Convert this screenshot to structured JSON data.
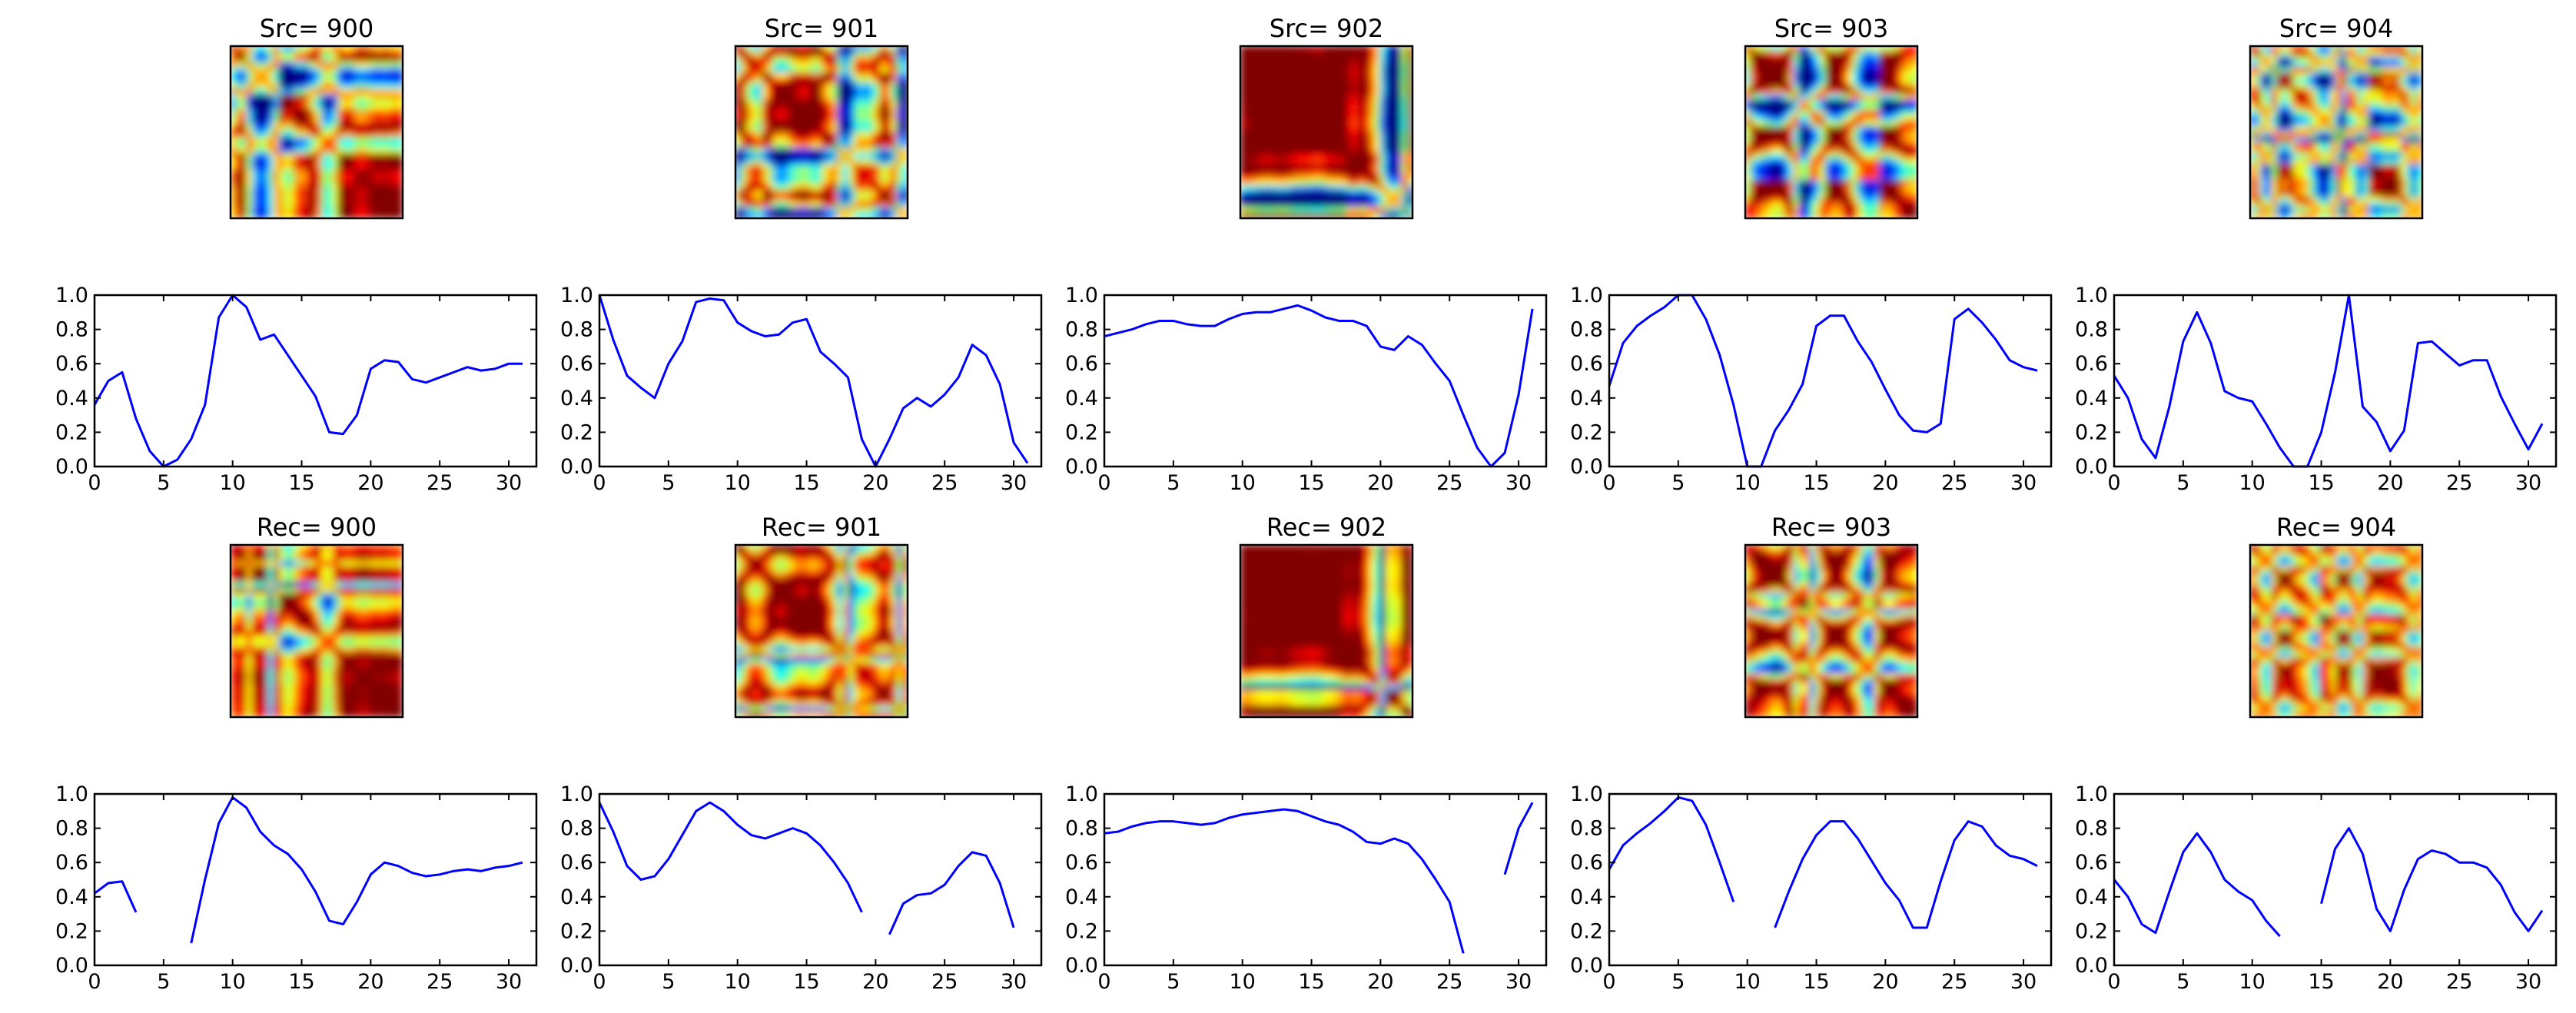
{
  "figure": {
    "description_free": true
  },
  "chart_data": [
    {
      "type": "heatmap",
      "title": "Src= 900",
      "sample": 900,
      "kind": "source"
    },
    {
      "type": "heatmap",
      "title": "Src= 901",
      "sample": 901,
      "kind": "source"
    },
    {
      "type": "heatmap",
      "title": "Src= 902",
      "sample": 902,
      "kind": "source"
    },
    {
      "type": "heatmap",
      "title": "Src= 903",
      "sample": 903,
      "kind": "source"
    },
    {
      "type": "heatmap",
      "title": "Src= 904",
      "sample": 904,
      "kind": "source"
    },
    {
      "type": "line",
      "sample": 900,
      "kind": "source",
      "xlim": [
        0,
        32
      ],
      "ylim": [
        0,
        1
      ],
      "xticks": [
        0,
        5,
        10,
        15,
        20,
        25,
        30
      ],
      "yticks": [
        "0.0",
        "0.2",
        "0.4",
        "0.6",
        "0.8",
        "1.0"
      ],
      "x": [
        0,
        1,
        2,
        3,
        4,
        5,
        6,
        7,
        8,
        9,
        10,
        11,
        12,
        13,
        14,
        15,
        16,
        17,
        18,
        19,
        20,
        21,
        22,
        23,
        24,
        25,
        26,
        27,
        28,
        29,
        30,
        31
      ],
      "y": [
        0.36,
        0.5,
        0.55,
        0.28,
        0.09,
        0.0,
        0.04,
        0.16,
        0.36,
        0.87,
        1.0,
        0.93,
        0.74,
        0.77,
        0.65,
        0.53,
        0.41,
        0.2,
        0.19,
        0.3,
        0.57,
        0.62,
        0.61,
        0.51,
        0.49,
        0.52,
        0.55,
        0.58,
        0.56,
        0.57,
        0.6,
        0.6
      ]
    },
    {
      "type": "line",
      "sample": 901,
      "kind": "source",
      "xlim": [
        0,
        32
      ],
      "ylim": [
        0,
        1
      ],
      "xticks": [
        0,
        5,
        10,
        15,
        20,
        25,
        30
      ],
      "yticks": [
        "0.0",
        "0.2",
        "0.4",
        "0.6",
        "0.8",
        "1.0"
      ],
      "x": [
        0,
        1,
        2,
        3,
        4,
        5,
        6,
        7,
        8,
        9,
        10,
        11,
        12,
        13,
        14,
        15,
        16,
        17,
        18,
        19,
        20,
        21,
        22,
        23,
        24,
        25,
        26,
        27,
        28,
        29,
        30,
        31
      ],
      "y": [
        1.0,
        0.74,
        0.53,
        0.46,
        0.4,
        0.6,
        0.73,
        0.96,
        0.98,
        0.97,
        0.84,
        0.79,
        0.76,
        0.77,
        0.84,
        0.86,
        0.67,
        0.6,
        0.52,
        0.16,
        0.0,
        0.16,
        0.34,
        0.4,
        0.35,
        0.42,
        0.52,
        0.71,
        0.65,
        0.48,
        0.14,
        0.02
      ]
    },
    {
      "type": "line",
      "sample": 902,
      "kind": "source",
      "xlim": [
        0,
        32
      ],
      "ylim": [
        0,
        1
      ],
      "xticks": [
        0,
        5,
        10,
        15,
        20,
        25,
        30
      ],
      "yticks": [
        "0.0",
        "0.2",
        "0.4",
        "0.6",
        "0.8",
        "1.0"
      ],
      "x": [
        0,
        1,
        2,
        3,
        4,
        5,
        6,
        7,
        8,
        9,
        10,
        11,
        12,
        13,
        14,
        15,
        16,
        17,
        18,
        19,
        20,
        21,
        22,
        23,
        24,
        25,
        26,
        27,
        28,
        29,
        30,
        31
      ],
      "y": [
        0.76,
        0.78,
        0.8,
        0.83,
        0.85,
        0.85,
        0.83,
        0.82,
        0.82,
        0.86,
        0.89,
        0.9,
        0.9,
        0.92,
        0.94,
        0.91,
        0.87,
        0.85,
        0.85,
        0.82,
        0.7,
        0.68,
        0.76,
        0.71,
        0.6,
        0.5,
        0.3,
        0.11,
        0.0,
        0.08,
        0.42,
        0.92
      ]
    },
    {
      "type": "line",
      "sample": 903,
      "kind": "source",
      "xlim": [
        0,
        32
      ],
      "ylim": [
        0,
        1
      ],
      "xticks": [
        0,
        5,
        10,
        15,
        20,
        25,
        30
      ],
      "yticks": [
        "0.0",
        "0.2",
        "0.4",
        "0.6",
        "0.8",
        "1.0"
      ],
      "x": [
        0,
        1,
        2,
        3,
        4,
        5,
        6,
        7,
        8,
        9,
        10,
        11,
        12,
        13,
        14,
        15,
        16,
        17,
        18,
        19,
        20,
        21,
        22,
        23,
        24,
        25,
        26,
        27,
        28,
        29,
        30,
        31
      ],
      "y": [
        0.47,
        0.72,
        0.82,
        0.88,
        0.93,
        1.0,
        1.0,
        0.86,
        0.65,
        0.36,
        0.0,
        0.0,
        0.21,
        0.33,
        0.48,
        0.82,
        0.88,
        0.88,
        0.73,
        0.61,
        0.45,
        0.3,
        0.21,
        0.2,
        0.25,
        0.86,
        0.92,
        0.84,
        0.74,
        0.62,
        0.58,
        0.56
      ]
    },
    {
      "type": "line",
      "sample": 904,
      "kind": "source",
      "xlim": [
        0,
        32
      ],
      "ylim": [
        0,
        1
      ],
      "xticks": [
        0,
        5,
        10,
        15,
        20,
        25,
        30
      ],
      "yticks": [
        "0.0",
        "0.2",
        "0.4",
        "0.6",
        "0.8",
        "1.0"
      ],
      "x": [
        0,
        1,
        2,
        3,
        4,
        5,
        6,
        7,
        8,
        9,
        10,
        11,
        12,
        13,
        14,
        15,
        16,
        17,
        18,
        19,
        20,
        21,
        22,
        23,
        24,
        25,
        26,
        27,
        28,
        29,
        30,
        31
      ],
      "y": [
        0.53,
        0.4,
        0.16,
        0.05,
        0.35,
        0.73,
        0.9,
        0.72,
        0.44,
        0.4,
        0.38,
        0.25,
        0.11,
        0.0,
        0.0,
        0.2,
        0.55,
        1.0,
        0.35,
        0.26,
        0.09,
        0.21,
        0.72,
        0.73,
        0.66,
        0.59,
        0.62,
        0.62,
        0.41,
        0.25,
        0.1,
        0.25
      ]
    },
    {
      "type": "heatmap",
      "title": "Rec= 900",
      "sample": 900,
      "kind": "reconstruction"
    },
    {
      "type": "heatmap",
      "title": "Rec= 901",
      "sample": 901,
      "kind": "reconstruction"
    },
    {
      "type": "heatmap",
      "title": "Rec= 902",
      "sample": 902,
      "kind": "reconstruction"
    },
    {
      "type": "heatmap",
      "title": "Rec= 903",
      "sample": 903,
      "kind": "reconstruction"
    },
    {
      "type": "heatmap",
      "title": "Rec= 904",
      "sample": 904,
      "kind": "reconstruction"
    },
    {
      "type": "line",
      "sample": 900,
      "kind": "reconstruction",
      "xlim": [
        0,
        32
      ],
      "ylim": [
        0,
        1
      ],
      "xticks": [
        0,
        5,
        10,
        15,
        20,
        25,
        30
      ],
      "yticks": [
        "0.0",
        "0.2",
        "0.4",
        "0.6",
        "0.8",
        "1.0"
      ],
      "x": [
        0,
        1,
        2,
        3,
        4,
        5,
        6,
        7,
        8,
        9,
        10,
        11,
        12,
        13,
        14,
        15,
        16,
        17,
        18,
        19,
        20,
        21,
        22,
        23,
        24,
        25,
        26,
        27,
        28,
        29,
        30,
        31
      ],
      "y": [
        0.42,
        0.48,
        0.49,
        0.31,
        null,
        null,
        null,
        0.13,
        0.5,
        0.83,
        0.98,
        0.92,
        0.78,
        0.7,
        0.65,
        0.56,
        0.43,
        0.26,
        0.24,
        0.37,
        0.53,
        0.6,
        0.58,
        0.54,
        0.52,
        0.53,
        0.55,
        0.56,
        0.55,
        0.57,
        0.58,
        0.6
      ]
    },
    {
      "type": "line",
      "sample": 901,
      "kind": "reconstruction",
      "xlim": [
        0,
        32
      ],
      "ylim": [
        0,
        1
      ],
      "xticks": [
        0,
        5,
        10,
        15,
        20,
        25,
        30
      ],
      "yticks": [
        "0.0",
        "0.2",
        "0.4",
        "0.6",
        "0.8",
        "1.0"
      ],
      "x": [
        0,
        1,
        2,
        3,
        4,
        5,
        6,
        7,
        8,
        9,
        10,
        11,
        12,
        13,
        14,
        15,
        16,
        17,
        18,
        19,
        20,
        21,
        22,
        23,
        24,
        25,
        26,
        27,
        28,
        29,
        30,
        31
      ],
      "y": [
        0.95,
        0.78,
        0.58,
        0.5,
        0.52,
        0.62,
        0.76,
        0.9,
        0.95,
        0.9,
        0.82,
        0.76,
        0.74,
        0.77,
        0.8,
        0.77,
        0.7,
        0.6,
        0.48,
        0.31,
        null,
        0.18,
        0.36,
        0.41,
        0.42,
        0.47,
        0.58,
        0.66,
        0.64,
        0.48,
        0.22,
        null
      ]
    },
    {
      "type": "line",
      "sample": 902,
      "kind": "reconstruction",
      "xlim": [
        0,
        32
      ],
      "ylim": [
        0,
        1
      ],
      "xticks": [
        0,
        5,
        10,
        15,
        20,
        25,
        30
      ],
      "yticks": [
        "0.0",
        "0.2",
        "0.4",
        "0.6",
        "0.8",
        "1.0"
      ],
      "x": [
        0,
        1,
        2,
        3,
        4,
        5,
        6,
        7,
        8,
        9,
        10,
        11,
        12,
        13,
        14,
        15,
        16,
        17,
        18,
        19,
        20,
        21,
        22,
        23,
        24,
        25,
        26,
        27,
        28,
        29,
        30,
        31
      ],
      "y": [
        0.77,
        0.78,
        0.81,
        0.83,
        0.84,
        0.84,
        0.83,
        0.82,
        0.83,
        0.86,
        0.88,
        0.89,
        0.9,
        0.91,
        0.9,
        0.87,
        0.84,
        0.82,
        0.78,
        0.72,
        0.71,
        0.74,
        0.71,
        0.62,
        0.5,
        0.37,
        0.07,
        null,
        null,
        0.53,
        0.8,
        0.95
      ]
    },
    {
      "type": "line",
      "sample": 903,
      "kind": "reconstruction",
      "xlim": [
        0,
        32
      ],
      "ylim": [
        0,
        1
      ],
      "xticks": [
        0,
        5,
        10,
        15,
        20,
        25,
        30
      ],
      "yticks": [
        "0.0",
        "0.2",
        "0.4",
        "0.6",
        "0.8",
        "1.0"
      ],
      "x": [
        0,
        1,
        2,
        3,
        4,
        5,
        6,
        7,
        8,
        9,
        10,
        11,
        12,
        13,
        14,
        15,
        16,
        17,
        18,
        19,
        20,
        21,
        22,
        23,
        24,
        25,
        26,
        27,
        28,
        29,
        30,
        31
      ],
      "y": [
        0.56,
        0.7,
        0.77,
        0.83,
        0.9,
        0.98,
        0.96,
        0.82,
        0.6,
        0.37,
        null,
        null,
        0.22,
        0.43,
        0.62,
        0.76,
        0.84,
        0.84,
        0.74,
        0.61,
        0.48,
        0.38,
        0.22,
        0.22,
        0.49,
        0.73,
        0.84,
        0.81,
        0.7,
        0.64,
        0.62,
        0.58
      ]
    },
    {
      "type": "line",
      "sample": 904,
      "kind": "reconstruction",
      "xlim": [
        0,
        32
      ],
      "ylim": [
        0,
        1
      ],
      "xticks": [
        0,
        5,
        10,
        15,
        20,
        25,
        30
      ],
      "yticks": [
        "0.0",
        "0.2",
        "0.4",
        "0.6",
        "0.8",
        "1.0"
      ],
      "x": [
        0,
        1,
        2,
        3,
        4,
        5,
        6,
        7,
        8,
        9,
        10,
        11,
        12,
        13,
        14,
        15,
        16,
        17,
        18,
        19,
        20,
        21,
        22,
        23,
        24,
        25,
        26,
        27,
        28,
        29,
        30,
        31
      ],
      "y": [
        0.5,
        0.4,
        0.24,
        0.19,
        0.43,
        0.66,
        0.77,
        0.66,
        0.5,
        0.43,
        0.38,
        0.26,
        0.17,
        null,
        null,
        0.36,
        0.68,
        0.8,
        0.65,
        0.33,
        0.2,
        0.44,
        0.62,
        0.67,
        0.65,
        0.6,
        0.6,
        0.57,
        0.47,
        0.31,
        0.2,
        0.32
      ]
    }
  ]
}
